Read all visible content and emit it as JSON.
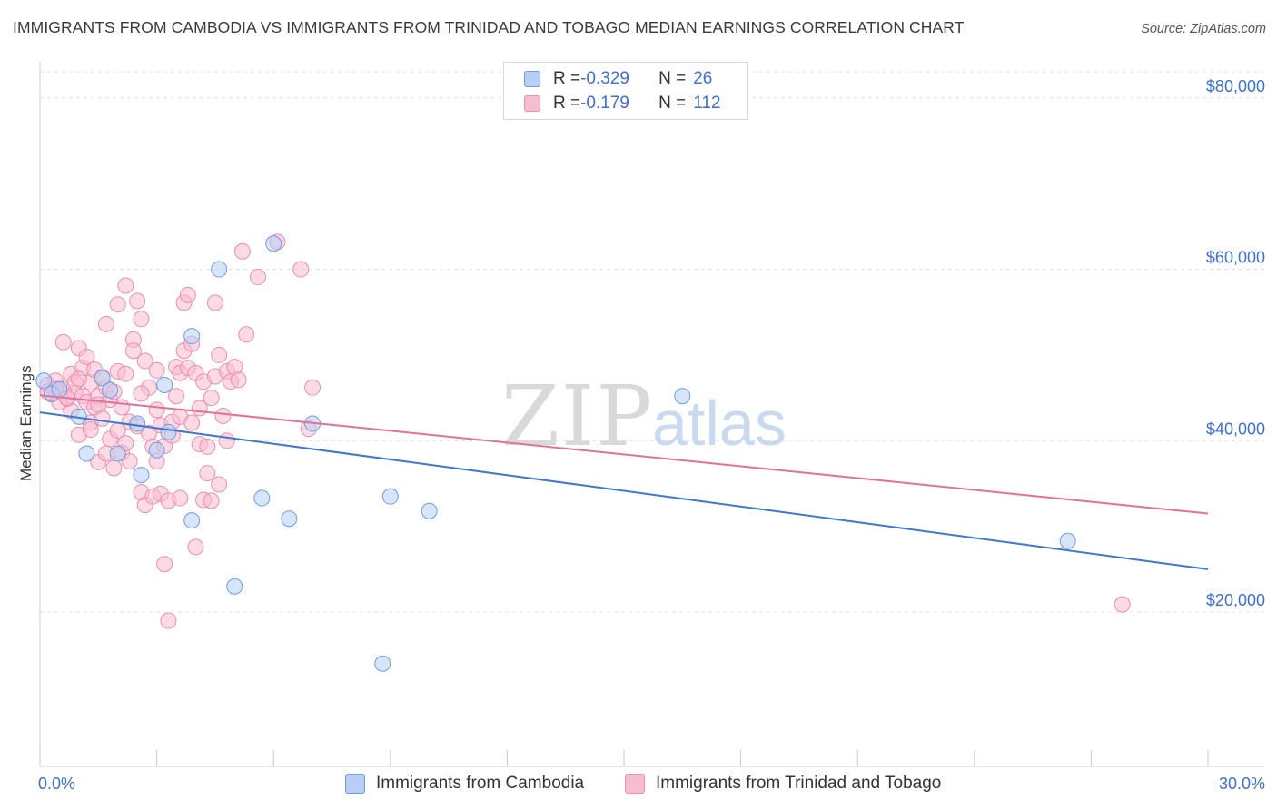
{
  "title": "IMMIGRANTS FROM CAMBODIA VS IMMIGRANTS FROM TRINIDAD AND TOBAGO MEDIAN EARNINGS CORRELATION CHART",
  "source": "Source: ZipAtlas.com",
  "watermark": {
    "zip": "ZIP",
    "atlas": "atlas"
  },
  "legend": {
    "rows": [
      {
        "r_label": "R = ",
        "r_value": "-0.329",
        "n_label": "N = ",
        "n_value": "26"
      },
      {
        "r_label": "R = ",
        "r_value": "-0.179",
        "n_label": "N = ",
        "n_value": "112"
      }
    ]
  },
  "bottom_legend": [
    "Immigrants from Cambodia",
    "Immigrants from Trinidad and Tobago"
  ],
  "colors": {
    "cambodia_fill": "#b7cff5",
    "cambodia_stroke": "#6f9de0",
    "cambodia_line": "#3a78d4",
    "tt_fill": "#f7bcd0",
    "tt_stroke": "#ec8fae",
    "tt_line": "#e4709a",
    "grid": "#e3e3e3",
    "accent_text": "#3c6fd1"
  },
  "chart_data": {
    "type": "scatter",
    "title": "IMMIGRANTS FROM CAMBODIA VS IMMIGRANTS FROM TRINIDAD AND TOBAGO MEDIAN EARNINGS CORRELATION CHART",
    "xlabel": "",
    "ylabel": "Median Earnings",
    "xlim": [
      0,
      30
    ],
    "ylim": [
      2000,
      84000
    ],
    "x_tick_labels": [
      "0.0%",
      "30.0%"
    ],
    "y_ticks": [
      20000,
      40000,
      60000,
      80000
    ],
    "y_tick_labels": [
      "$20,000",
      "$40,000",
      "$60,000",
      "$80,000"
    ],
    "grid": "horizontal dashed",
    "legend_position": "top-center",
    "series": [
      {
        "name": "Immigrants from Cambodia",
        "r": -0.329,
        "n": 26,
        "trend": {
          "x": [
            0,
            30
          ],
          "y": [
            43300,
            25000
          ]
        },
        "points": [
          [
            0.1,
            47000
          ],
          [
            0.3,
            45500
          ],
          [
            0.5,
            46000
          ],
          [
            1.0,
            42800
          ],
          [
            1.2,
            38500
          ],
          [
            1.6,
            47300
          ],
          [
            1.8,
            45900
          ],
          [
            2.0,
            38500
          ],
          [
            2.5,
            42000
          ],
          [
            2.6,
            36000
          ],
          [
            3.0,
            38900
          ],
          [
            3.2,
            46500
          ],
          [
            3.3,
            41000
          ],
          [
            3.9,
            52200
          ],
          [
            3.9,
            30700
          ],
          [
            4.6,
            60000
          ],
          [
            5.0,
            23000
          ],
          [
            5.7,
            33300
          ],
          [
            6.0,
            63000
          ],
          [
            6.4,
            30900
          ],
          [
            7.0,
            42000
          ],
          [
            8.8,
            14000
          ],
          [
            9.0,
            33500
          ],
          [
            10.0,
            31800
          ],
          [
            16.5,
            45200
          ],
          [
            26.4,
            28300
          ]
        ]
      },
      {
        "name": "Immigrants from Trinidad and Tobago",
        "r": -0.179,
        "n": 112,
        "trend": {
          "x": [
            0,
            30
          ],
          "y": [
            45300,
            31500
          ]
        },
        "points": [
          [
            0.2,
            46500
          ],
          [
            0.3,
            45400
          ],
          [
            0.4,
            47000
          ],
          [
            0.5,
            45800
          ],
          [
            0.6,
            51500
          ],
          [
            0.6,
            46000
          ],
          [
            0.7,
            44900
          ],
          [
            0.8,
            47800
          ],
          [
            0.8,
            43500
          ],
          [
            0.9,
            45600
          ],
          [
            1.0,
            50800
          ],
          [
            1.0,
            40700
          ],
          [
            1.1,
            48500
          ],
          [
            1.1,
            45200
          ],
          [
            1.2,
            49800
          ],
          [
            1.2,
            44500
          ],
          [
            1.3,
            46800
          ],
          [
            1.3,
            42100
          ],
          [
            1.4,
            48300
          ],
          [
            1.4,
            43900
          ],
          [
            1.5,
            45200
          ],
          [
            1.5,
            37500
          ],
          [
            1.6,
            47400
          ],
          [
            1.6,
            42600
          ],
          [
            1.7,
            53600
          ],
          [
            1.7,
            46200
          ],
          [
            1.8,
            44800
          ],
          [
            1.8,
            40200
          ],
          [
            1.9,
            45700
          ],
          [
            1.9,
            36800
          ],
          [
            2.0,
            55900
          ],
          [
            2.0,
            48100
          ],
          [
            2.1,
            43900
          ],
          [
            2.1,
            38600
          ],
          [
            2.2,
            58100
          ],
          [
            2.2,
            47800
          ],
          [
            2.3,
            42200
          ],
          [
            2.3,
            37600
          ],
          [
            2.4,
            51800
          ],
          [
            2.4,
            50500
          ],
          [
            2.5,
            56300
          ],
          [
            2.5,
            41700
          ],
          [
            2.6,
            54200
          ],
          [
            2.6,
            34000
          ],
          [
            2.7,
            49300
          ],
          [
            2.7,
            32500
          ],
          [
            2.8,
            46200
          ],
          [
            2.8,
            40900
          ],
          [
            2.9,
            39300
          ],
          [
            2.9,
            33500
          ],
          [
            3.0,
            43600
          ],
          [
            3.0,
            37600
          ],
          [
            3.1,
            41800
          ],
          [
            3.1,
            33800
          ],
          [
            3.2,
            39400
          ],
          [
            3.2,
            25600
          ],
          [
            3.3,
            19000
          ],
          [
            3.3,
            33000
          ],
          [
            3.4,
            42200
          ],
          [
            3.4,
            40600
          ],
          [
            3.5,
            45200
          ],
          [
            3.5,
            48600
          ],
          [
            3.6,
            47900
          ],
          [
            3.6,
            42800
          ],
          [
            3.7,
            56100
          ],
          [
            3.7,
            50500
          ],
          [
            3.8,
            57000
          ],
          [
            3.8,
            48500
          ],
          [
            3.9,
            51300
          ],
          [
            3.9,
            42100
          ],
          [
            4.0,
            47900
          ],
          [
            4.0,
            27600
          ],
          [
            4.1,
            43800
          ],
          [
            4.1,
            39600
          ],
          [
            4.2,
            46900
          ],
          [
            4.2,
            33100
          ],
          [
            4.3,
            39300
          ],
          [
            4.3,
            36200
          ],
          [
            4.4,
            45000
          ],
          [
            4.4,
            33000
          ],
          [
            4.5,
            56100
          ],
          [
            4.5,
            47500
          ],
          [
            4.6,
            50000
          ],
          [
            4.6,
            34900
          ],
          [
            4.7,
            42900
          ],
          [
            4.8,
            48100
          ],
          [
            4.8,
            40000
          ],
          [
            4.9,
            46900
          ],
          [
            5.0,
            48600
          ],
          [
            5.1,
            47100
          ],
          [
            5.2,
            62100
          ],
          [
            5.3,
            52400
          ],
          [
            5.6,
            59100
          ],
          [
            6.1,
            63200
          ],
          [
            6.7,
            60000
          ],
          [
            6.9,
            41400
          ],
          [
            7.0,
            46200
          ],
          [
            0.5,
            44500
          ],
          [
            0.9,
            46800
          ],
          [
            1.3,
            41300
          ],
          [
            1.7,
            38500
          ],
          [
            2.0,
            41200
          ],
          [
            2.6,
            45500
          ],
          [
            3.0,
            48200
          ],
          [
            0.4,
            46000
          ],
          [
            0.7,
            45000
          ],
          [
            1.0,
            47200
          ],
          [
            1.5,
            44200
          ],
          [
            2.2,
            39700
          ],
          [
            3.6,
            33300
          ],
          [
            27.8,
            20900
          ],
          [
            0.2,
            45700
          ]
        ]
      }
    ]
  }
}
